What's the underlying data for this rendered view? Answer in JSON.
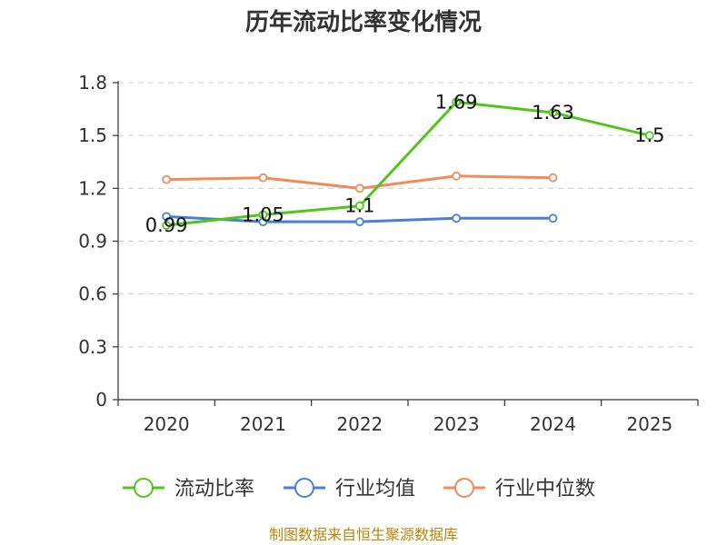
{
  "title": "历年流动比率变化情况",
  "source": "制图数据来自恒生聚源数据库",
  "chart_data": {
    "type": "line",
    "categories": [
      "2020",
      "2021",
      "2022",
      "2023",
      "2024",
      "2025"
    ],
    "ylim": [
      0,
      1.8
    ],
    "yticks": [
      "0",
      "0.3",
      "0.6",
      "0.9",
      "1.2",
      "1.5",
      "1.8"
    ],
    "grid": true,
    "legend_position": "bottom",
    "series": [
      {
        "name": "流动比率",
        "color": "#52c41a",
        "values": [
          0.99,
          1.05,
          1.1,
          1.69,
          1.63,
          1.5
        ],
        "labels": [
          "0.99",
          "1.05",
          "1.1",
          "1.69",
          "1.63",
          "1.5"
        ]
      },
      {
        "name": "行业均值",
        "color": "#4a7fd9",
        "values": [
          1.04,
          1.01,
          1.01,
          1.03,
          1.03,
          null
        ]
      },
      {
        "name": "行业中位数",
        "color": "#f08c5a",
        "values": [
          1.25,
          1.26,
          1.2,
          1.27,
          1.26,
          null
        ]
      }
    ]
  }
}
